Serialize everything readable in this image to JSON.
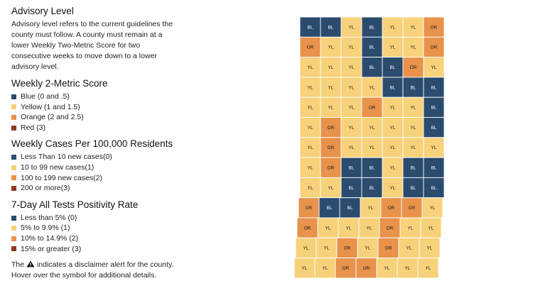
{
  "advisory": {
    "title": "Advisory Level",
    "description": "Advisory level refers to the current guidelines the county must follow. A county must remain at a lower Weekly Two-Metric Score for two consecutive weeks to move down to a lower advisory level."
  },
  "colors": {
    "blue": "#2b4b6f",
    "yellow": "#f7d27a",
    "orange": "#e8924b",
    "red": "#8e3a22"
  },
  "legends": [
    {
      "title": "Weekly 2-Metric Score",
      "items": [
        {
          "label": "Blue (0 and .5)",
          "color": "#2b4b6f"
        },
        {
          "label": "Yellow (1 and 1.5)",
          "color": "#f7d27a"
        },
        {
          "label": "Orange (2 and 2.5)",
          "color": "#e8924b"
        },
        {
          "label": "Red (3)",
          "color": "#8e3a22"
        }
      ]
    },
    {
      "title": "Weekly Cases Per 100,000 Residents",
      "items": [
        {
          "label": "Less Than 10 new cases(0)",
          "color": "#2b4b6f"
        },
        {
          "label": "10 to 99 new cases(1)",
          "color": "#f7d27a"
        },
        {
          "label": "100 to 199 new cases(2)",
          "color": "#e8924b"
        },
        {
          "label": "200 or more(3)",
          "color": "#8e3a22"
        }
      ]
    },
    {
      "title": "7-Day All Tests Positivity Rate",
      "items": [
        {
          "label": "Less than 5% (0)",
          "color": "#2b4b6f"
        },
        {
          "label": "5% to 9.9% (1)",
          "color": "#f7d27a"
        },
        {
          "label": "10% to 14.9% (2)",
          "color": "#e8924b"
        },
        {
          "label": "15% or greater (3)",
          "color": "#8e3a22"
        }
      ]
    }
  ],
  "disclaimer": {
    "before": "The",
    "icon": "warning-triangle-icon",
    "after": "indicates a disclaimer alert for the county. Hover over the symbol for additional details."
  },
  "map": {
    "rows": [
      [
        "BL",
        "BL",
        "YL",
        "BL",
        "YL",
        "YL",
        "OR"
      ],
      [
        "OR",
        "YL",
        "YL",
        "BL",
        "YL",
        "YL",
        "OR"
      ],
      [
        "YL",
        "YL",
        "YL",
        "BL",
        "BL",
        "OR",
        "YL"
      ],
      [
        "YL",
        "YL",
        "YL",
        "YL",
        "BL",
        "BL",
        "BL"
      ],
      [
        "YL",
        "YL",
        "YL",
        "OR",
        "YL",
        "YL",
        "BL"
      ],
      [
        "YL",
        "OR",
        "YL",
        "YL",
        "YL",
        "YL",
        "BL"
      ],
      [
        "YL",
        "OR",
        "YL",
        "YL",
        "YL",
        "YL",
        "YL"
      ],
      [
        "YL",
        "OR",
        "BL",
        "BL",
        "YL",
        "BL",
        "BL"
      ],
      [
        "YL",
        "YL",
        "BL",
        "BL",
        "YL",
        "BL",
        "BL"
      ],
      [
        "OR",
        "BL",
        "BL",
        "YL",
        "OR",
        "OR",
        "YL"
      ],
      [
        "OR",
        "YL",
        "YL",
        "YL",
        "OR",
        "YL",
        "YL"
      ],
      [
        "YL",
        "YL",
        "OR",
        "YL",
        "OR",
        "YL",
        "YL"
      ],
      [
        "YL",
        "YL",
        "OR",
        "OR",
        "YL",
        "YL",
        "YL"
      ]
    ]
  }
}
